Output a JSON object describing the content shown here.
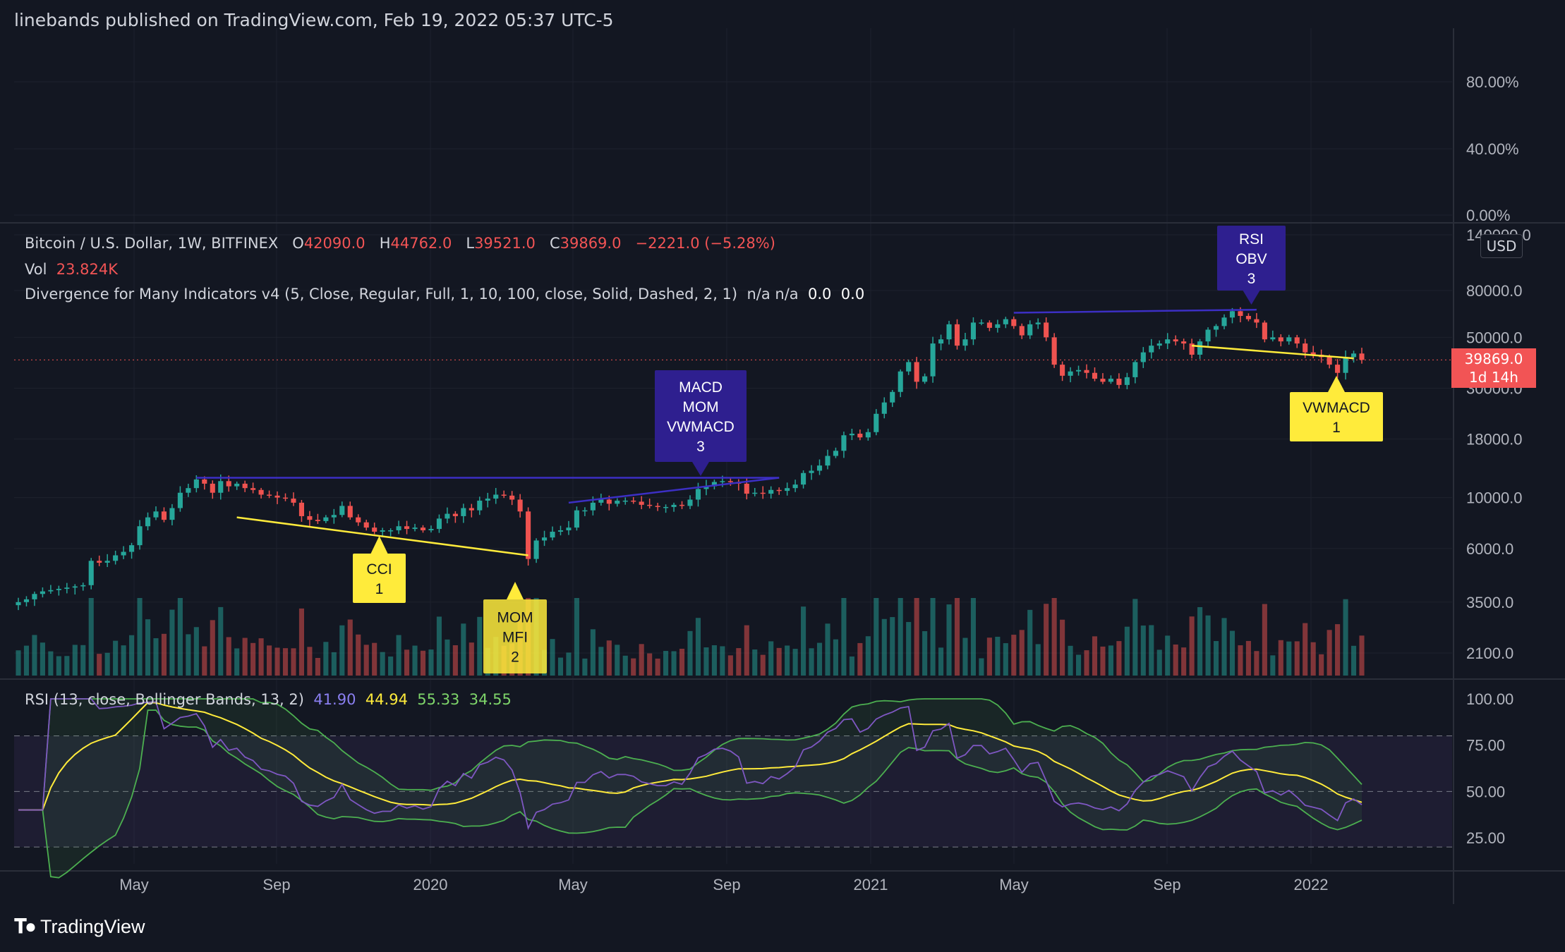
{
  "header": {
    "published": "linebands published on TradingView.com, Feb 19, 2022 05:37 UTC-5"
  },
  "top_pane": {
    "axis_labels": [
      "80.00%",
      "40.00%",
      "0.00%"
    ]
  },
  "main_legend": {
    "symbol": "Bitcoin / U.S. Dollar, 1W, BITFINEX",
    "open_label": "O",
    "open": "42090.0",
    "high_label": "H",
    "high": "44762.0",
    "low_label": "L",
    "low": "39521.0",
    "close_label": "C",
    "close": "39869.0",
    "change": "−2221.0 (−5.28%)",
    "vol_label": "Vol",
    "vol": "23.824K",
    "indicator": "Divergence for Many Indicators v4 (5, Close, Regular, Full, 1, 10, 100, close, Solid, Dashed, 2, 1)",
    "indicator_values": "n/a  n/a",
    "indicator_v1": "0.0",
    "indicator_v2": "0.0"
  },
  "price_axis": {
    "labels": [
      "140000.0",
      "80000.0",
      "50000.0",
      "30000.0",
      "18000.0",
      "10000.0",
      "6000.0",
      "3500.0",
      "2100.0"
    ],
    "currency": "USD",
    "last_price": "39869.0",
    "countdown": "1d 14h"
  },
  "annotations": [
    {
      "text": [
        "RSI",
        "OBV",
        "3"
      ],
      "style": "bearish"
    },
    {
      "text": [
        "MACD",
        "MOM",
        "VWMACD",
        "3"
      ],
      "style": "bearish"
    },
    {
      "text": [
        "CCI",
        "1"
      ],
      "style": "bullish"
    },
    {
      "text": [
        "MOM",
        "MFI",
        "2"
      ],
      "style": "bullish"
    },
    {
      "text": [
        "VWMACD",
        "1"
      ],
      "style": "bullish"
    }
  ],
  "rsi_legend": {
    "label": "RSI (13, close, Bollinger Bands, 13, 2)",
    "rsi": "41.90",
    "basis": "44.94",
    "upper": "55.33",
    "lower": "34.55"
  },
  "rsi_axis": {
    "labels": [
      "100.00",
      "75.00",
      "50.00",
      "25.00"
    ]
  },
  "time_axis": {
    "labels": [
      "May",
      "Sep",
      "2020",
      "May",
      "Sep",
      "2021",
      "May",
      "Sep",
      "2022"
    ]
  },
  "footer": {
    "brand": "TradingView"
  },
  "colors": {
    "background": "#131722",
    "bull": "#26a69a",
    "bear": "#ef5350",
    "bull_label": "#ffeb3b",
    "bear_label": "#2e1f8f",
    "rsi": "#7e57c2",
    "rsi_basis": "#ffeb3b",
    "bands": "#4caf50"
  },
  "chart_data": {
    "type": "candlestick",
    "title": "Bitcoin / U.S. Dollar, 1W, BITFINEX",
    "y_scale": "log",
    "ylim": [
      1800,
      160000
    ],
    "close_series": [
      3500,
      3600,
      3800,
      3900,
      3950,
      4000,
      4050,
      4100,
      4150,
      5300,
      5200,
      5300,
      5600,
      5800,
      6200,
      7500,
      8200,
      8700,
      8000,
      9000,
      10500,
      11000,
      12000,
      11500,
      10500,
      11800,
      11200,
      11500,
      11000,
      10800,
      10300,
      10200,
      10000,
      9900,
      9500,
      8300,
      8000,
      7900,
      8200,
      8400,
      9200,
      8200,
      7800,
      7400,
      7100,
      7200,
      7200,
      7500,
      7300,
      7400,
      7200,
      7300,
      8100,
      8500,
      8300,
      9000,
      8800,
      9700,
      9900,
      10300,
      10200,
      9800,
      8700,
      5400,
      6500,
      6700,
      7100,
      7200,
      7400,
      8800,
      8800,
      9500,
      9800,
      9400,
      9700,
      9700,
      9600,
      9300,
      9200,
      9100,
      9100,
      9300,
      9200,
      9800,
      10900,
      11200,
      11700,
      11800,
      11700,
      11500,
      10400,
      10500,
      10400,
      10800,
      10700,
      11000,
      11400,
      12800,
      13100,
      13800,
      15200,
      16000,
      18700,
      19000,
      18300,
      19300,
      23200,
      26000,
      28900,
      35500,
      39000,
      32000,
      33800,
      47000,
      49000,
      57000,
      46000,
      49000,
      58000,
      58000,
      55000,
      57000,
      60000,
      56000,
      51000,
      57000,
      58000,
      50000,
      38000,
      34000,
      35500,
      36000,
      35000,
      33000,
      32000,
      33000,
      31000,
      33500,
      39000,
      43000,
      46000,
      47000,
      49000,
      48000,
      47000,
      42000,
      48000,
      54000,
      56000,
      61000,
      65000,
      62000,
      60000,
      58000,
      49000,
      50000,
      48000,
      50000,
      47000,
      43000,
      42000,
      41000,
      38000,
      35000,
      41000,
      42500,
      39869
    ],
    "rsi_current": 41.9,
    "rsi_basis_current": 44.94,
    "bb_upper_current": 55.33,
    "bb_lower_current": 34.55,
    "rsi_ylim": [
      0,
      100
    ],
    "rsi_levels": [
      80,
      50,
      20
    ]
  }
}
